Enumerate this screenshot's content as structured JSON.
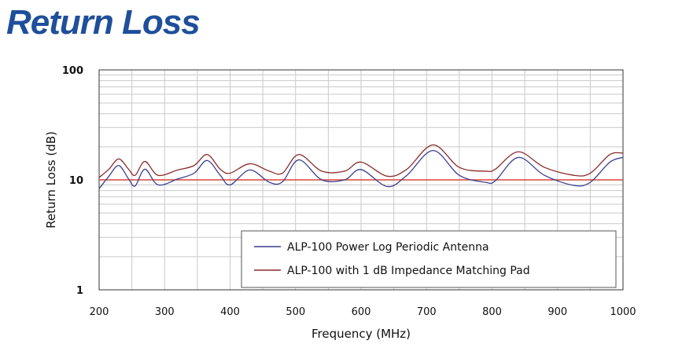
{
  "page": {
    "title": "Return Loss"
  },
  "chart_data": {
    "type": "line",
    "title": "",
    "xlabel": "Frequency (MHz)",
    "ylabel": "Return Loss (dB)",
    "xlim": [
      200,
      1000
    ],
    "ylim": [
      1,
      100
    ],
    "yscale": "log",
    "grid": true,
    "x_ticks": [
      200,
      300,
      400,
      500,
      600,
      700,
      800,
      900,
      1000
    ],
    "y_ticks": [
      1,
      10,
      100
    ],
    "y_tick_labels": [
      "1",
      "10",
      "100"
    ],
    "legend_position": "bottom-right",
    "reference_line": {
      "y": 10,
      "color": "#d6453a"
    },
    "series": [
      {
        "name": "ALP-100 Power Log Periodic Antenna",
        "color": "#3a3f8f",
        "x": [
          200,
          215,
          230,
          245,
          255,
          270,
          290,
          320,
          345,
          365,
          385,
          400,
          430,
          460,
          480,
          505,
          540,
          575,
          600,
          640,
          670,
          710,
          750,
          790,
          805,
          840,
          880,
          925,
          950,
          980,
          1000
        ],
        "y": [
          8.3,
          10.8,
          13.5,
          10.2,
          8.8,
          12.5,
          9.0,
          10.2,
          11.5,
          15.0,
          11.0,
          9.0,
          12.3,
          9.5,
          9.6,
          15.2,
          10.0,
          10.0,
          12.4,
          8.7,
          11.0,
          18.5,
          11.0,
          9.5,
          9.8,
          16.0,
          11.0,
          8.9,
          9.5,
          14.5,
          16.0
        ]
      },
      {
        "name": "ALP-100 with 1 dB Impedance Matching Pad",
        "color": "#8a2b2b",
        "x": [
          200,
          215,
          230,
          245,
          255,
          270,
          290,
          320,
          345,
          365,
          385,
          400,
          430,
          460,
          480,
          505,
          540,
          575,
          600,
          640,
          670,
          710,
          750,
          790,
          805,
          840,
          880,
          925,
          950,
          980,
          1000
        ],
        "y": [
          10.5,
          12.5,
          15.5,
          12.5,
          11.0,
          14.7,
          11.0,
          12.3,
          13.5,
          17.0,
          12.5,
          11.5,
          14.0,
          12.0,
          11.5,
          17.0,
          12.0,
          12.0,
          14.5,
          10.8,
          12.5,
          20.8,
          13.0,
          12.0,
          12.5,
          18.0,
          13.0,
          11.0,
          11.5,
          17.0,
          17.5
        ]
      }
    ]
  }
}
